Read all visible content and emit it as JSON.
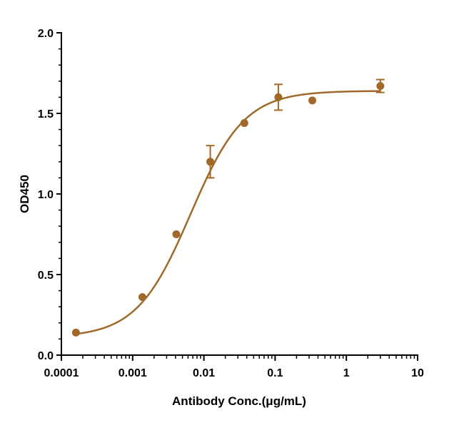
{
  "chart_data": {
    "type": "scatter",
    "title": "",
    "xlabel": "Antibody Conc.(μg/mL)",
    "ylabel": "OD450",
    "x_scale": "log",
    "xlim": [
      0.0001,
      10
    ],
    "ylim": [
      0,
      2.0
    ],
    "x_ticks": [
      0.0001,
      0.001,
      0.01,
      0.1,
      1,
      10
    ],
    "x_tick_labels": [
      "0.0001",
      "0.001",
      "0.01",
      "0.1",
      "1",
      "10"
    ],
    "y_ticks": [
      0,
      0.5,
      1.0,
      1.5,
      2.0
    ],
    "y_tick_labels": [
      "0.0",
      "0.5",
      "1.0",
      "1.5",
      "2.0"
    ],
    "grid": false,
    "legend": "none",
    "color": "#a0692a",
    "points": [
      {
        "x": 0.00016,
        "y": 0.14,
        "err": 0.01
      },
      {
        "x": 0.00137,
        "y": 0.36,
        "err": 0.01
      },
      {
        "x": 0.0041,
        "y": 0.75,
        "err": 0.01
      },
      {
        "x": 0.0123,
        "y": 1.2,
        "err": 0.1
      },
      {
        "x": 0.037,
        "y": 1.44,
        "err": 0.01
      },
      {
        "x": 0.111,
        "y": 1.6,
        "err": 0.08
      },
      {
        "x": 0.333,
        "y": 1.58,
        "err": 0.01
      },
      {
        "x": 3.0,
        "y": 1.67,
        "err": 0.04
      }
    ],
    "fit": {
      "model": "4PL",
      "bottom": 0.11,
      "top": 1.64,
      "ec50": 0.0065,
      "hill": 1.15
    }
  }
}
